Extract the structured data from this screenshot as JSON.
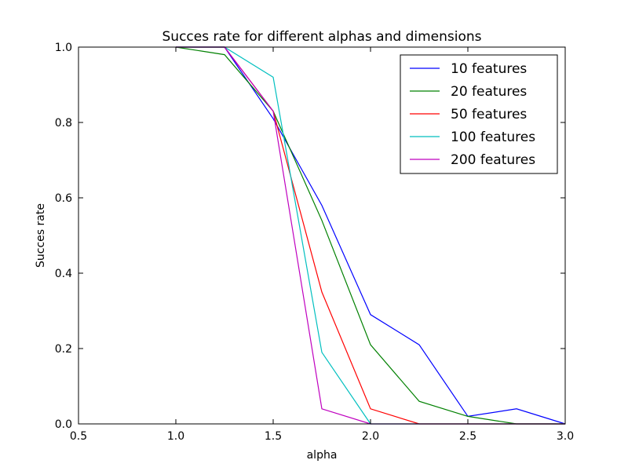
{
  "chart_data": {
    "type": "line",
    "title": "Succes rate for different alphas and dimensions",
    "xlabel": "alpha",
    "ylabel": "Succes rate",
    "xlim": [
      0.5,
      3.0
    ],
    "ylim": [
      0.0,
      1.0
    ],
    "xticks": [
      0.5,
      1.0,
      1.5,
      2.0,
      2.5,
      3.0
    ],
    "xtick_labels": [
      "0.5",
      "1.0",
      "1.5",
      "2.0",
      "2.5",
      "3.0"
    ],
    "yticks": [
      0.0,
      0.2,
      0.4,
      0.6,
      0.8,
      1.0
    ],
    "ytick_labels": [
      "0.0",
      "0.2",
      "0.4",
      "0.6",
      "0.8",
      "1.0"
    ],
    "grid": false,
    "legend_position": "top-right",
    "x": [
      1.0,
      1.25,
      1.5,
      1.75,
      2.0,
      2.25,
      2.5,
      2.75,
      3.0
    ],
    "series": [
      {
        "name": "10 features",
        "color": "#0000ff",
        "values": [
          1.0,
          1.0,
          0.81,
          0.58,
          0.29,
          0.21,
          0.02,
          0.04,
          0.0
        ]
      },
      {
        "name": "20 features",
        "color": "#008000",
        "values": [
          1.0,
          0.98,
          0.83,
          0.54,
          0.21,
          0.06,
          0.02,
          0.0,
          0.0
        ]
      },
      {
        "name": "50 features",
        "color": "#ff0000",
        "values": [
          1.0,
          1.0,
          0.83,
          0.35,
          0.04,
          0.0,
          0.0,
          0.0,
          0.0
        ]
      },
      {
        "name": "100 features",
        "color": "#00bfbf",
        "values": [
          1.0,
          1.0,
          0.92,
          0.19,
          0.0,
          0.0,
          0.0,
          0.0,
          0.0
        ]
      },
      {
        "name": "200 features",
        "color": "#bf00bf",
        "values": [
          1.0,
          1.0,
          0.83,
          0.04,
          0.0,
          0.0,
          0.0,
          0.0,
          0.0
        ]
      }
    ]
  }
}
